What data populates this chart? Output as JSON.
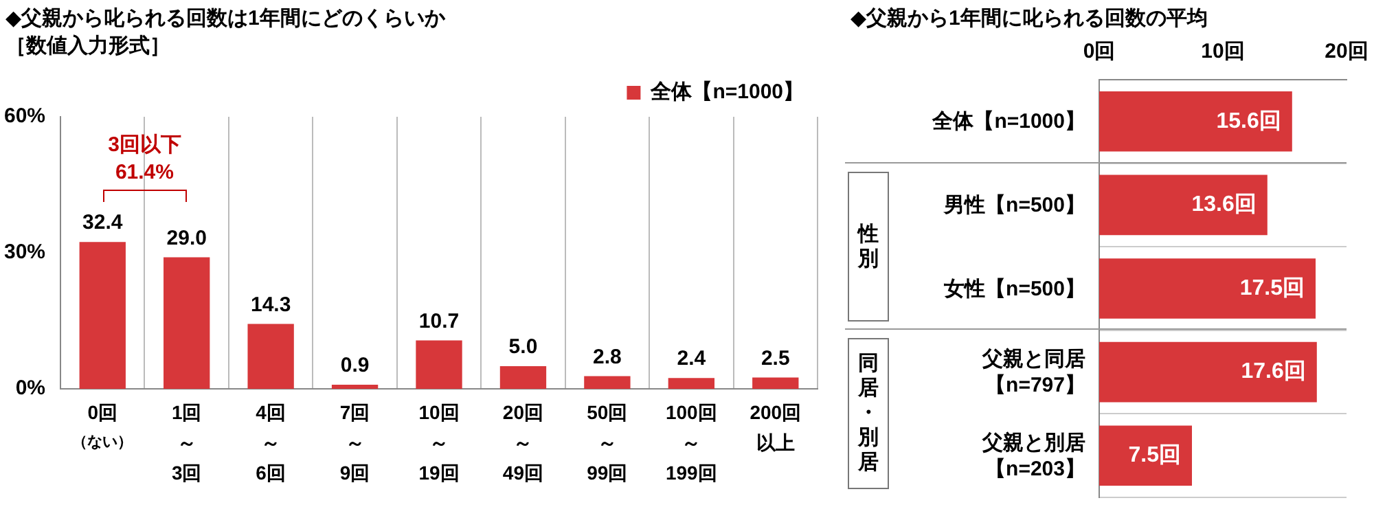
{
  "chart_data": [
    {
      "type": "bar",
      "title": "◆父親から叱られる回数は1年間にどのくらいか",
      "subtitle": "［数値入力形式］",
      "categories": [
        "0回（ない）",
        "1回～3回",
        "4回～6回",
        "7回～9回",
        "10回～19回",
        "20回～49回",
        "50回～99回",
        "100回～199回",
        "200回以上"
      ],
      "series": [
        {
          "name": "全体【n=1000】",
          "color": "#d7373a",
          "values": [
            32.4,
            29.0,
            14.3,
            0.9,
            10.7,
            5.0,
            2.8,
            2.4,
            2.5
          ],
          "value_labels": [
            "32.4",
            "29.0",
            "14.3",
            "0.9",
            "10.7",
            "5.0",
            "2.8",
            "2.4",
            "2.5"
          ]
        }
      ],
      "ylim": [
        0,
        60
      ],
      "yticks": [
        {
          "value": 0,
          "label": "0%"
        },
        {
          "value": 30,
          "label": "30%"
        },
        {
          "value": 60,
          "label": "60%"
        }
      ],
      "grid": "x",
      "legend": "top right",
      "annotations": [
        "3回以下\n61.4%"
      ]
    },
    {
      "type": "bar",
      "orientation": "horizontal",
      "title": "◆父親から1年間に叱られる回数の平均",
      "categories": [
        "全体【n=1000】",
        "男性【n=500】",
        "女性【n=500】",
        "父親と同居【n=797】",
        "父親と別居【n=203】"
      ],
      "series": [
        {
          "color": "#d7373a",
          "values": [
            15.6,
            13.6,
            17.5,
            17.6,
            7.5
          ],
          "value_labels": [
            "15.6回",
            "13.6回",
            "17.5回",
            "17.6回",
            "7.5回"
          ]
        }
      ],
      "xlim": [
        0,
        20
      ],
      "xticks": [
        {
          "value": 0,
          "label": "0回"
        },
        {
          "value": 10,
          "label": "10回"
        },
        {
          "value": 20,
          "label": "20回"
        }
      ],
      "grid": "y",
      "annotations": [
        "性別",
        "同居・別居"
      ]
    }
  ]
}
